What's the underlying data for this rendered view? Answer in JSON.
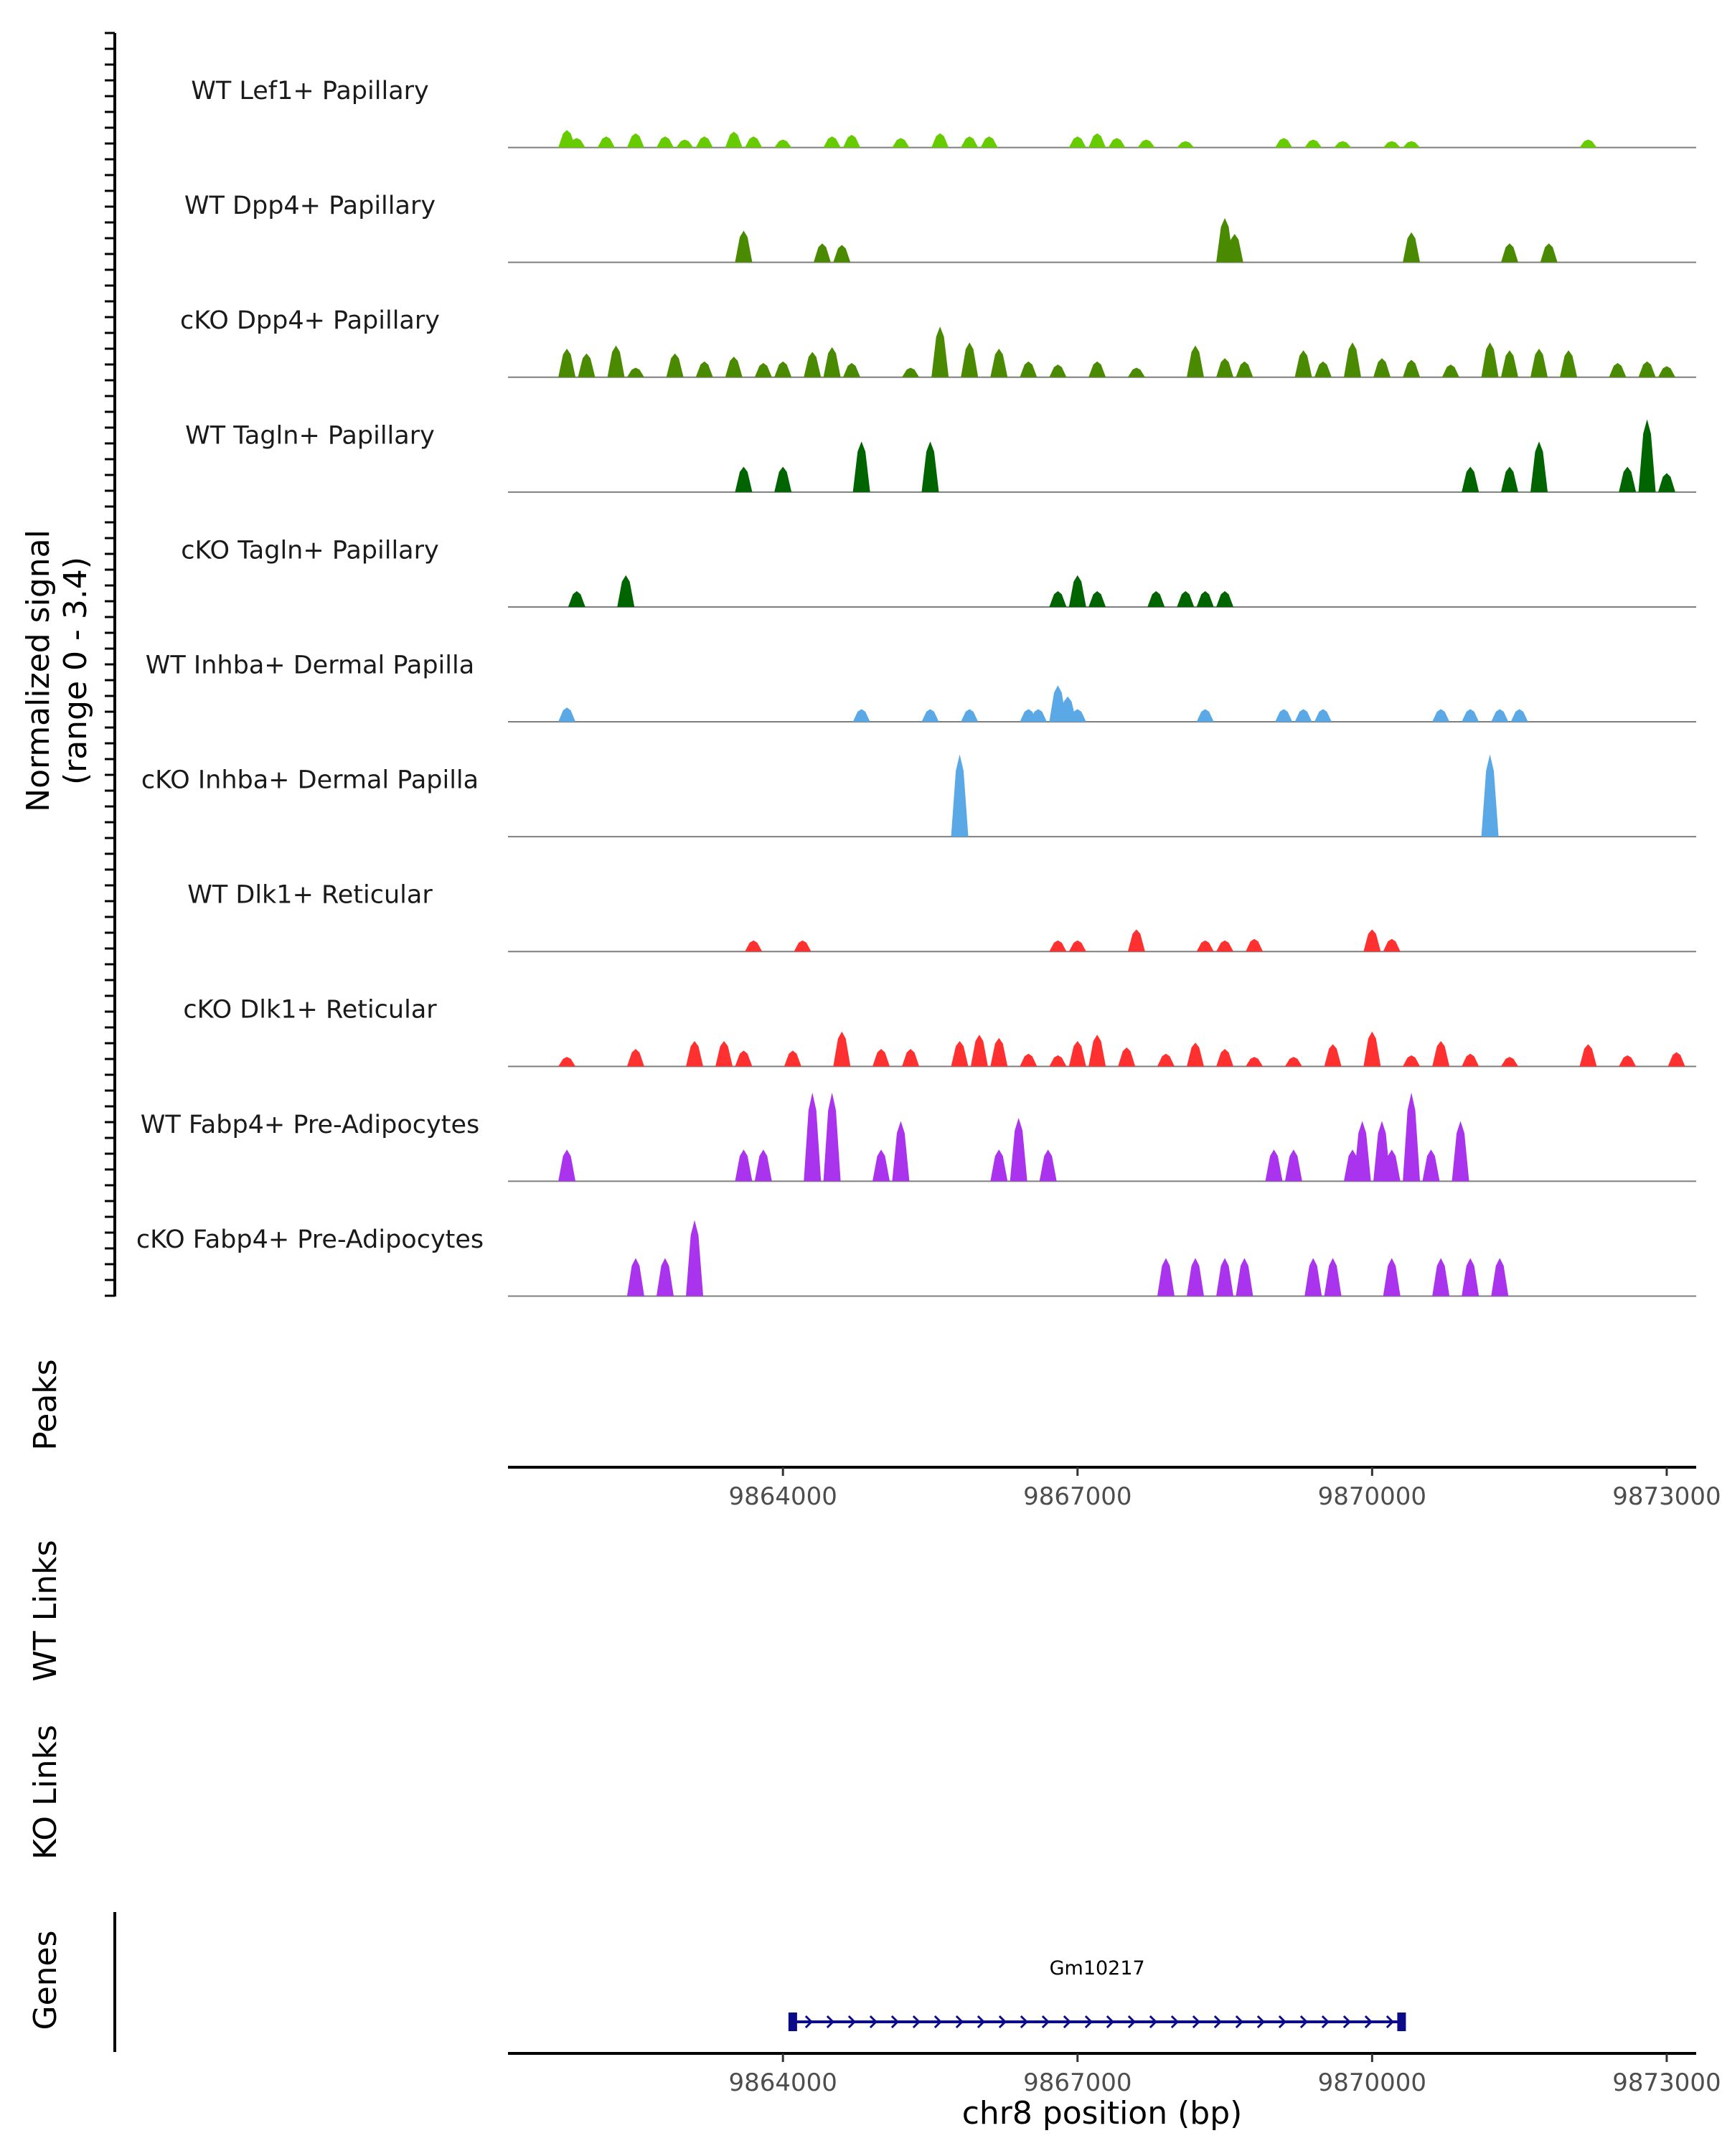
{
  "chart_data": {
    "type": "area",
    "title": "",
    "chromosome": "chr8",
    "xlabel": "chr8 position (bp)",
    "xlim": [
      9861200,
      9873300
    ],
    "xticks": [
      9864000,
      9867000,
      9870000,
      9873000
    ],
    "ylabel_line1": "Normalized signal",
    "ylabel_line2": "(range 0 - 3.4)",
    "ylim": [
      0,
      3.4
    ],
    "peaks_label": "Peaks",
    "wt_links_label": "WT Links",
    "ko_links_label": "KO Links",
    "genes_label": "Genes",
    "series": [
      {
        "name": "WT Lef1+ Papillary",
        "color": "#66cc00",
        "peaks": [
          [
            9861800,
            0.55
          ],
          [
            9861900,
            0.3
          ],
          [
            9862200,
            0.35
          ],
          [
            9862500,
            0.45
          ],
          [
            9862800,
            0.35
          ],
          [
            9863000,
            0.25
          ],
          [
            9863200,
            0.35
          ],
          [
            9863500,
            0.5
          ],
          [
            9863700,
            0.35
          ],
          [
            9864000,
            0.25
          ],
          [
            9864500,
            0.35
          ],
          [
            9864700,
            0.4
          ],
          [
            9865200,
            0.3
          ],
          [
            9865600,
            0.45
          ],
          [
            9865900,
            0.35
          ],
          [
            9866100,
            0.35
          ],
          [
            9867000,
            0.35
          ],
          [
            9867200,
            0.45
          ],
          [
            9867400,
            0.3
          ],
          [
            9867700,
            0.25
          ],
          [
            9868100,
            0.2
          ],
          [
            9869100,
            0.3
          ],
          [
            9869400,
            0.25
          ],
          [
            9869700,
            0.2
          ],
          [
            9870200,
            0.2
          ],
          [
            9870400,
            0.2
          ],
          [
            9872200,
            0.25
          ]
        ]
      },
      {
        "name": "WT Dpp4+ Papillary",
        "color": "#4a8a00",
        "peaks": [
          [
            9863600,
            1.0
          ],
          [
            9864400,
            0.6
          ],
          [
            9864600,
            0.55
          ],
          [
            9868500,
            1.4
          ],
          [
            9868600,
            0.9
          ],
          [
            9870400,
            0.95
          ],
          [
            9871400,
            0.6
          ],
          [
            9871800,
            0.6
          ]
        ]
      },
      {
        "name": "cKO Dpp4+ Papillary",
        "color": "#4a8a00",
        "peaks": [
          [
            9861800,
            0.9
          ],
          [
            9862000,
            0.75
          ],
          [
            9862300,
            1.0
          ],
          [
            9862500,
            0.3
          ],
          [
            9862900,
            0.75
          ],
          [
            9863200,
            0.5
          ],
          [
            9863500,
            0.65
          ],
          [
            9863800,
            0.45
          ],
          [
            9864000,
            0.5
          ],
          [
            9864300,
            0.8
          ],
          [
            9864500,
            0.95
          ],
          [
            9864700,
            0.45
          ],
          [
            9865300,
            0.3
          ],
          [
            9865600,
            1.6
          ],
          [
            9865900,
            1.1
          ],
          [
            9866200,
            0.9
          ],
          [
            9866500,
            0.5
          ],
          [
            9866800,
            0.4
          ],
          [
            9867200,
            0.5
          ],
          [
            9867600,
            0.3
          ],
          [
            9868200,
            1.0
          ],
          [
            9868500,
            0.6
          ],
          [
            9868700,
            0.5
          ],
          [
            9869300,
            0.85
          ],
          [
            9869500,
            0.5
          ],
          [
            9869800,
            1.1
          ],
          [
            9870100,
            0.6
          ],
          [
            9870400,
            0.55
          ],
          [
            9870800,
            0.4
          ],
          [
            9871200,
            1.1
          ],
          [
            9871400,
            0.85
          ],
          [
            9871700,
            0.9
          ],
          [
            9872000,
            0.85
          ],
          [
            9872500,
            0.45
          ],
          [
            9872800,
            0.5
          ],
          [
            9873000,
            0.35
          ]
        ]
      },
      {
        "name": "WT Tagln+ Papillary",
        "color": "#006400",
        "peaks": [
          [
            9863600,
            0.8
          ],
          [
            9864000,
            0.8
          ],
          [
            9864800,
            1.6
          ],
          [
            9865500,
            1.6
          ],
          [
            9871000,
            0.8
          ],
          [
            9871400,
            0.8
          ],
          [
            9871700,
            1.6
          ],
          [
            9872600,
            0.8
          ],
          [
            9872800,
            2.3
          ],
          [
            9873000,
            0.6
          ]
        ]
      },
      {
        "name": "cKO Tagln+ Papillary",
        "color": "#006400",
        "peaks": [
          [
            9861900,
            0.5
          ],
          [
            9862400,
            1.0
          ],
          [
            9866800,
            0.5
          ],
          [
            9867000,
            1.0
          ],
          [
            9867200,
            0.5
          ],
          [
            9867800,
            0.5
          ],
          [
            9868100,
            0.5
          ],
          [
            9868300,
            0.5
          ],
          [
            9868500,
            0.5
          ]
        ]
      },
      {
        "name": "WT Inhba+ Dermal Papilla",
        "color": "#5aa9e6",
        "peaks": [
          [
            9861800,
            0.45
          ],
          [
            9864800,
            0.4
          ],
          [
            9865500,
            0.4
          ],
          [
            9865900,
            0.4
          ],
          [
            9866500,
            0.4
          ],
          [
            9866600,
            0.4
          ],
          [
            9866800,
            1.15
          ],
          [
            9866900,
            0.8
          ],
          [
            9867000,
            0.4
          ],
          [
            9868300,
            0.4
          ],
          [
            9869100,
            0.4
          ],
          [
            9869300,
            0.4
          ],
          [
            9869500,
            0.4
          ],
          [
            9870700,
            0.4
          ],
          [
            9871000,
            0.4
          ],
          [
            9871300,
            0.4
          ],
          [
            9871500,
            0.4
          ]
        ]
      },
      {
        "name": "cKO Inhba+ Dermal Papilla",
        "color": "#5aa9e6",
        "peaks": [
          [
            9865800,
            2.6
          ],
          [
            9871200,
            2.6
          ]
        ]
      },
      {
        "name": "WT Dlk1+ Reticular",
        "color": "#ff3030",
        "peaks": [
          [
            9863700,
            0.35
          ],
          [
            9864200,
            0.35
          ],
          [
            9866800,
            0.35
          ],
          [
            9867000,
            0.35
          ],
          [
            9867600,
            0.7
          ],
          [
            9868300,
            0.35
          ],
          [
            9868500,
            0.35
          ],
          [
            9868800,
            0.4
          ],
          [
            9870000,
            0.7
          ],
          [
            9870200,
            0.4
          ]
        ]
      },
      {
        "name": "cKO Dlk1+ Reticular",
        "color": "#ff3030",
        "peaks": [
          [
            9861800,
            0.3
          ],
          [
            9862500,
            0.55
          ],
          [
            9863100,
            0.8
          ],
          [
            9863400,
            0.8
          ],
          [
            9863600,
            0.5
          ],
          [
            9864100,
            0.5
          ],
          [
            9864600,
            1.1
          ],
          [
            9865000,
            0.55
          ],
          [
            9865300,
            0.55
          ],
          [
            9865800,
            0.8
          ],
          [
            9866000,
            1.0
          ],
          [
            9866200,
            0.9
          ],
          [
            9866500,
            0.4
          ],
          [
            9866800,
            0.35
          ],
          [
            9867000,
            0.8
          ],
          [
            9867200,
            1.0
          ],
          [
            9867500,
            0.6
          ],
          [
            9867900,
            0.4
          ],
          [
            9868200,
            0.75
          ],
          [
            9868500,
            0.55
          ],
          [
            9868800,
            0.3
          ],
          [
            9869200,
            0.3
          ],
          [
            9869600,
            0.7
          ],
          [
            9870000,
            1.1
          ],
          [
            9870400,
            0.35
          ],
          [
            9870700,
            0.8
          ],
          [
            9871000,
            0.4
          ],
          [
            9871400,
            0.3
          ],
          [
            9872200,
            0.7
          ],
          [
            9872600,
            0.35
          ],
          [
            9873100,
            0.45
          ]
        ]
      },
      {
        "name": "WT Fabp4+ Pre-Adipocytes",
        "color": "#aa33ee",
        "peaks": [
          [
            9861800,
            1.0
          ],
          [
            9863600,
            1.0
          ],
          [
            9863800,
            1.0
          ],
          [
            9864300,
            2.8
          ],
          [
            9864500,
            2.8
          ],
          [
            9865000,
            1.0
          ],
          [
            9865200,
            1.9
          ],
          [
            9866200,
            1.0
          ],
          [
            9866400,
            2.0
          ],
          [
            9866700,
            1.0
          ],
          [
            9869000,
            1.0
          ],
          [
            9869200,
            1.0
          ],
          [
            9869800,
            1.0
          ],
          [
            9869900,
            1.9
          ],
          [
            9870100,
            1.9
          ],
          [
            9870200,
            1.0
          ],
          [
            9870400,
            2.8
          ],
          [
            9870600,
            1.0
          ],
          [
            9870900,
            1.9
          ]
        ]
      },
      {
        "name": "cKO Fabp4+ Pre-Adipocytes",
        "color": "#aa33ee",
        "peaks": [
          [
            9862500,
            1.2
          ],
          [
            9862800,
            1.2
          ],
          [
            9863100,
            2.4
          ],
          [
            9867900,
            1.2
          ],
          [
            9868200,
            1.2
          ],
          [
            9868500,
            1.2
          ],
          [
            9868700,
            1.2
          ],
          [
            9869400,
            1.2
          ],
          [
            9869600,
            1.2
          ],
          [
            9870200,
            1.2
          ],
          [
            9870700,
            1.2
          ],
          [
            9871000,
            1.2
          ],
          [
            9871300,
            1.2
          ]
        ]
      }
    ],
    "gene": {
      "name": "Gm10217",
      "start": 9864100,
      "end": 9870300,
      "strand": "+"
    }
  }
}
